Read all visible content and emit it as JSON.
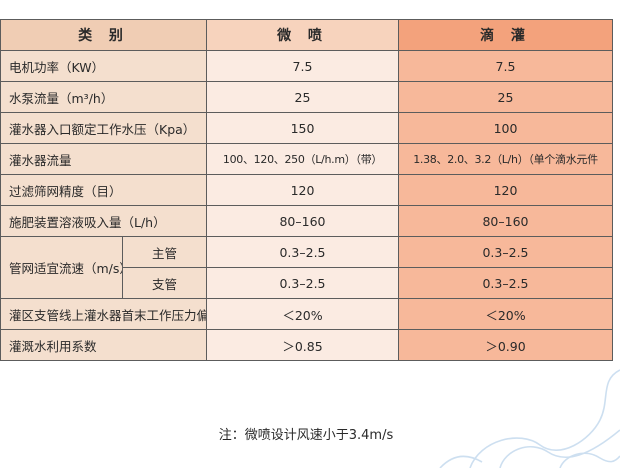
{
  "header": {
    "category": "类 别",
    "micro": "微 喷",
    "drip": "滴 灌"
  },
  "rows": [
    {
      "label": "电机功率（KW）",
      "micro": "7.5",
      "drip": "7.5"
    },
    {
      "label": "水泵流量（m³/h）",
      "micro": "25",
      "drip": "25"
    },
    {
      "label": "灌水器入口额定工作水压（Kpa）",
      "micro": "150",
      "drip": "100"
    },
    {
      "label": "灌水器流量",
      "micro": "100、120、250（L/h.m）（带）",
      "drip": "1.38、2.0、3.2（L/h）（单个滴水元件"
    },
    {
      "label": "过滤筛网精度（目）",
      "micro": "120",
      "drip": "120"
    },
    {
      "label": "施肥装置溶液吸入量（L/h）",
      "micro": "80–160",
      "drip": "80–160"
    }
  ],
  "pipe": {
    "label": "管网适宜流速（m/s）",
    "main": {
      "label": "主管",
      "micro": "0.3–2.5",
      "drip": "0.3–2.5"
    },
    "branch": {
      "label": "支管",
      "micro": "0.3–2.5",
      "drip": "0.3–2.5"
    }
  },
  "rows_bottom": [
    {
      "label": "灌区支管线上灌水器首末工作压力偏差",
      "micro": "＜20%",
      "drip": "＜20%"
    },
    {
      "label": "灌溉水利用系数",
      "micro": "＞0.85",
      "drip": "＞0.90"
    }
  ],
  "note": "注：微喷设计风速小于3.4m/s"
}
